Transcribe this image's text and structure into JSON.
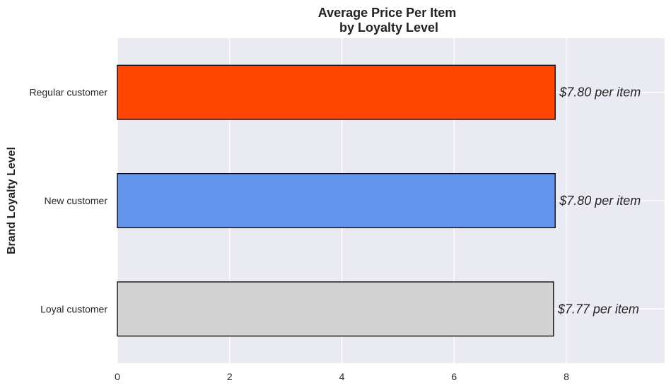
{
  "chart_data": {
    "type": "bar",
    "orientation": "horizontal",
    "title": "Average Price Per Item\nby Loyalty Level",
    "xlabel": "",
    "ylabel": "Brand Loyalty Level",
    "categories": [
      "Loyal customer",
      "New customer",
      "Regular customer"
    ],
    "values": [
      7.77,
      7.8,
      7.8
    ],
    "data_labels": [
      "$7.77 per item",
      "$7.80 per item",
      "$7.80 per item"
    ],
    "bar_colors": [
      "#d3d3d3",
      "#6495ed",
      "#ff4500"
    ],
    "xlim": [
      0,
      9.75
    ],
    "xticks": [
      0,
      2,
      4,
      6,
      8
    ],
    "grid": true,
    "legend": "none",
    "background": "#eaeaf2"
  }
}
